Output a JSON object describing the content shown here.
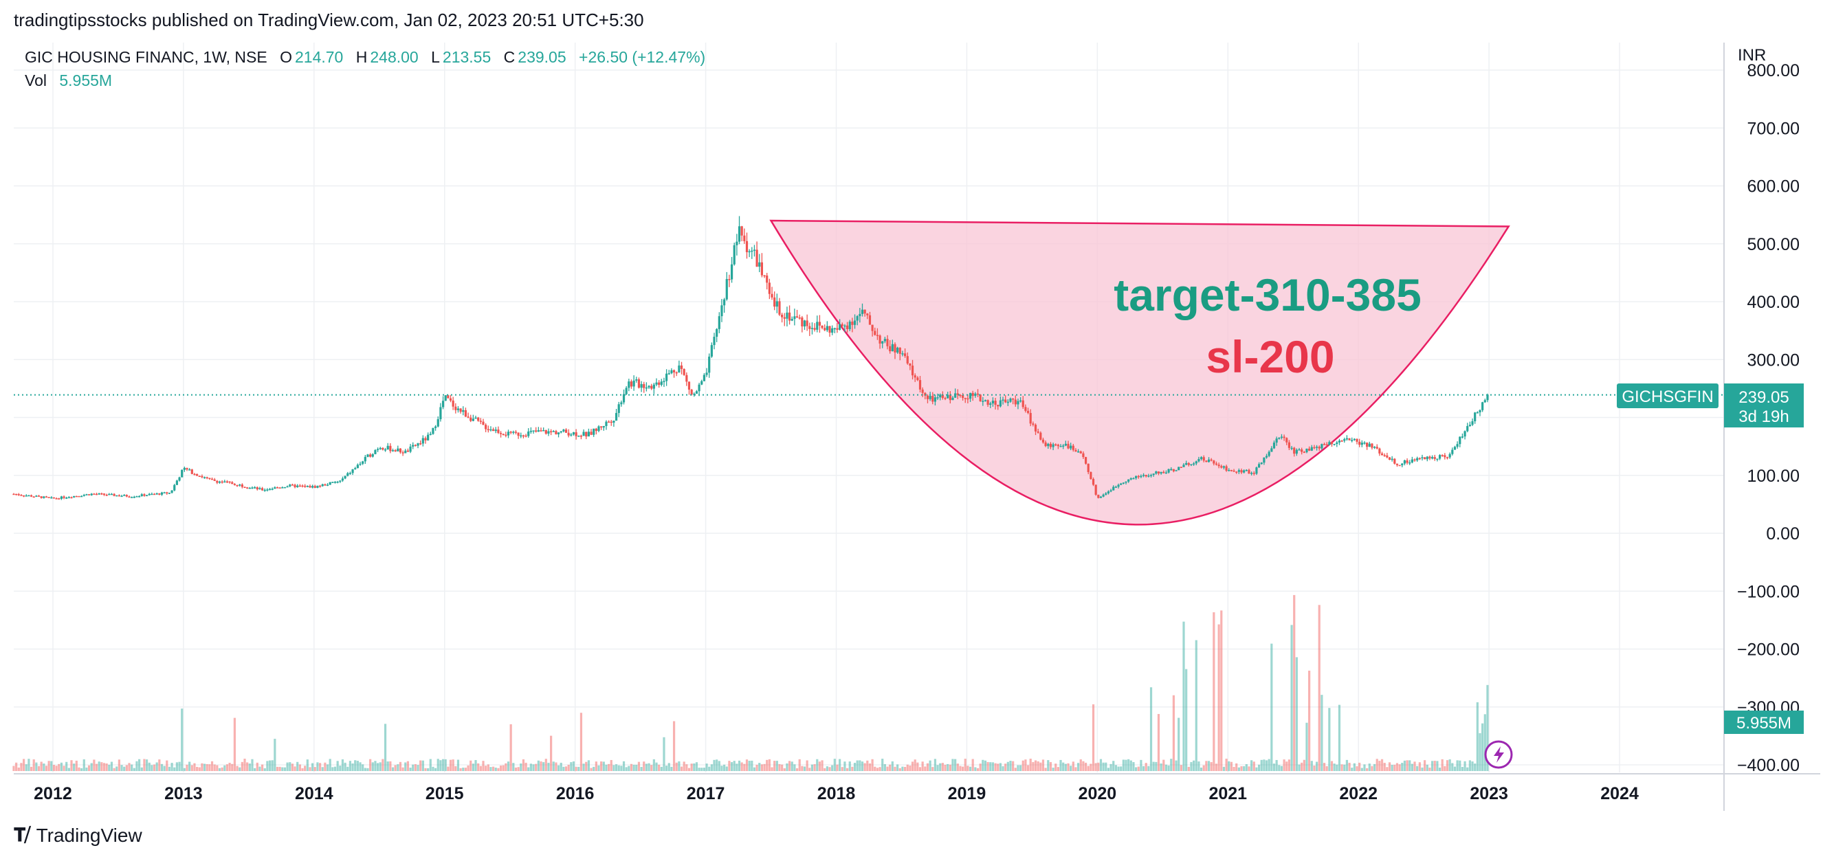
{
  "header": {
    "published": "tradingtipsstocks published on TradingView.com, Jan 02, 2023 20:51 UTC+5:30"
  },
  "legend": {
    "symbol_line": "GIC HOUSING FINANC, 1W, NSE",
    "o_label": "O",
    "o_value": "214.70",
    "h_label": "H",
    "h_value": "248.00",
    "l_label": "L",
    "l_value": "213.55",
    "c_label": "C",
    "c_value": "239.05",
    "change": "+26.50 (+12.47%)",
    "vol_label": "Vol",
    "vol_value": "5.955M"
  },
  "axis": {
    "currency": "INR",
    "price_ticks": [
      "800.00",
      "700.00",
      "600.00",
      "500.00",
      "400.00",
      "300.00",
      "100.00",
      "0.00",
      "−100.00",
      "−200.00",
      "−300.00",
      "−400.00"
    ],
    "year_ticks": [
      "2012",
      "2013",
      "2014",
      "2015",
      "2016",
      "2017",
      "2018",
      "2019",
      "2020",
      "2021",
      "2022",
      "2023",
      "2024"
    ]
  },
  "price_label": {
    "ticker": "GICHSGFIN",
    "price": "239.05",
    "countdown": "3d 19h"
  },
  "volume_label": {
    "value": "5.955M"
  },
  "annotations": {
    "target": "target-310-385",
    "stoploss": "sl-200"
  },
  "footer": {
    "brand": "TradingView",
    "brand_icon": "tradingview-logo-icon"
  },
  "colors": {
    "up": "#26a69a",
    "down": "#ef5350",
    "cup_fill": "#f8c6d6",
    "cup_stroke": "#e91e63",
    "target_text": "#1a9c82",
    "sl_text": "#e8364a",
    "grid": "#eef0f3",
    "price_line": "#26a69a"
  },
  "chart_data": {
    "type": "line",
    "interval": "1W",
    "ylim": [
      -430,
      830
    ],
    "x_range": [
      2011.7,
      2024.8
    ],
    "price_series": {
      "name": "GIC HOUSING FINANC",
      "x": [
        2011.7,
        2012.0,
        2012.3,
        2012.6,
        2012.9,
        2013.0,
        2013.2,
        2013.4,
        2013.6,
        2013.8,
        2014.0,
        2014.2,
        2014.4,
        2014.5,
        2014.7,
        2014.9,
        2015.0,
        2015.1,
        2015.3,
        2015.5,
        2015.7,
        2015.9,
        2016.1,
        2016.3,
        2016.4,
        2016.6,
        2016.8,
        2016.9,
        2017.0,
        2017.15,
        2017.25,
        2017.4,
        2017.5,
        2017.6,
        2017.8,
        2018.0,
        2018.2,
        2018.35,
        2018.5,
        2018.7,
        2018.85,
        2019.0,
        2019.2,
        2019.4,
        2019.6,
        2019.75,
        2019.9,
        2020.0,
        2020.1,
        2020.2,
        2020.35,
        2020.6,
        2020.8,
        2021.0,
        2021.2,
        2021.4,
        2021.5,
        2021.7,
        2021.9,
        2022.1,
        2022.3,
        2022.5,
        2022.7,
        2022.85,
        2022.95,
        2023.0
      ],
      "close": [
        68,
        60,
        68,
        64,
        70,
        112,
        92,
        85,
        75,
        82,
        80,
        90,
        130,
        150,
        140,
        170,
        235,
        215,
        185,
        170,
        175,
        175,
        170,
        200,
        260,
        255,
        290,
        235,
        270,
        420,
        520,
        470,
        400,
        380,
        360,
        350,
        380,
        330,
        310,
        230,
        235,
        240,
        225,
        230,
        150,
        155,
        130,
        60,
        75,
        90,
        100,
        110,
        130,
        110,
        105,
        170,
        140,
        150,
        165,
        150,
        120,
        130,
        135,
        190,
        220,
        239.05
      ]
    },
    "cup_top_right": [
      2023.15,
      530
    ],
    "cup_top_left": [
      2017.5,
      540
    ],
    "cup_bottom": [
      2020.3,
      15
    ],
    "last_price": 239.05,
    "annotations": [
      "target-310-385",
      "sl-200"
    ]
  }
}
